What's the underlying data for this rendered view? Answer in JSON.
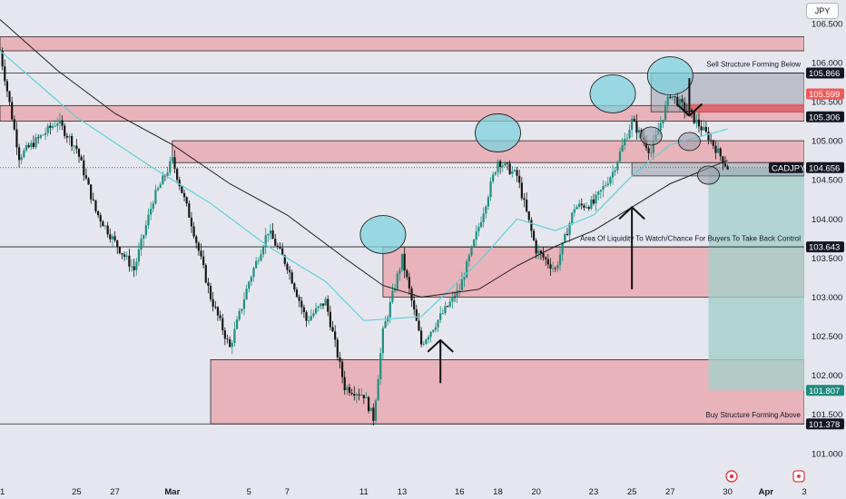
{
  "currency_button": "JPY",
  "symbol": "CADJPY",
  "colors": {
    "bg": "#e6e7ee",
    "zone_fill": "#e7a9b0",
    "zone_stroke": "#2a2a2a",
    "bull": "#1f8f80",
    "bear": "#161616",
    "ma_fast": "#5fd2d6",
    "ma_slow": "#1f1f1f",
    "circle": "#7fd3dd",
    "green_box": "#a5cfc9",
    "price_tag": "#131722",
    "red_tag": "#f05a5a",
    "teal_tag": "#1e8a7e"
  },
  "chart_data": {
    "type": "candlestick",
    "y_axis": {
      "min": 100.65,
      "max": 106.8,
      "ticks": [
        "106.500",
        "106.000",
        "105.500",
        "105.000",
        "104.500",
        "104.000",
        "103.500",
        "103.000",
        "102.500",
        "102.000",
        "101.500",
        "101.000"
      ],
      "side": "right"
    },
    "x_axis": {
      "start": "Feb 21",
      "end": "Apr 3",
      "labels": [
        {
          "label": "1",
          "date": "Feb 21"
        },
        {
          "label": "25",
          "date": "Feb 25"
        },
        {
          "label": "27",
          "date": "Feb 27"
        },
        {
          "label": "Mar",
          "date": "Mar 1"
        },
        {
          "label": "5",
          "date": "Mar 5"
        },
        {
          "label": "7",
          "date": "Mar 7"
        },
        {
          "label": "11",
          "date": "Mar 11"
        },
        {
          "label": "13",
          "date": "Mar 13"
        },
        {
          "label": "16",
          "date": "Mar 16"
        },
        {
          "label": "18",
          "date": "Mar 18"
        },
        {
          "label": "20",
          "date": "Mar 20"
        },
        {
          "label": "23",
          "date": "Mar 23"
        },
        {
          "label": "25",
          "date": "Mar 25"
        },
        {
          "label": "27",
          "date": "Mar 27"
        },
        {
          "label": "30",
          "date": "Mar 30"
        },
        {
          "label": "Apr",
          "date": "Apr 1"
        },
        {
          "label": "3",
          "date": "Apr 3"
        }
      ]
    },
    "price_path": [
      {
        "date": "Feb 21",
        "price": 106.15
      },
      {
        "date": "Feb 22",
        "price": 104.8
      },
      {
        "date": "Feb 24",
        "price": 105.25
      },
      {
        "date": "Feb 25",
        "price": 104.9
      },
      {
        "date": "Feb 26",
        "price": 104.1
      },
      {
        "date": "Feb 27",
        "price": 103.7
      },
      {
        "date": "Feb 28",
        "price": 103.35
      },
      {
        "date": "Feb 29",
        "price": 104.25
      },
      {
        "date": "Mar 1",
        "price": 104.75
      },
      {
        "date": "Mar 2",
        "price": 103.95
      },
      {
        "date": "Mar 3",
        "price": 103.0
      },
      {
        "date": "Mar 4",
        "price": 102.35
      },
      {
        "date": "Mar 5",
        "price": 103.2
      },
      {
        "date": "Mar 6",
        "price": 103.85
      },
      {
        "date": "Mar 7",
        "price": 103.4
      },
      {
        "date": "Mar 8",
        "price": 102.7
      },
      {
        "date": "Mar 9",
        "price": 102.95
      },
      {
        "date": "Mar 10",
        "price": 101.85
      },
      {
        "date": "Mar 11",
        "price": 101.75
      },
      {
        "date": "Mar 11 PM",
        "price": 101.45
      },
      {
        "date": "Mar 12",
        "price": 102.55
      },
      {
        "date": "Mar 13",
        "price": 103.5
      },
      {
        "date": "Mar 14",
        "price": 102.4
      },
      {
        "date": "Mar 15",
        "price": 102.75
      },
      {
        "date": "Mar 16",
        "price": 103.1
      },
      {
        "date": "Mar 17",
        "price": 103.9
      },
      {
        "date": "Mar 18",
        "price": 104.75
      },
      {
        "date": "Mar 19",
        "price": 104.55
      },
      {
        "date": "Mar 20",
        "price": 103.6
      },
      {
        "date": "Mar 21",
        "price": 103.35
      },
      {
        "date": "Mar 22",
        "price": 104.15
      },
      {
        "date": "Mar 23",
        "price": 104.2
      },
      {
        "date": "Mar 24",
        "price": 104.6
      },
      {
        "date": "Mar 25",
        "price": 105.25
      },
      {
        "date": "Mar 26",
        "price": 104.85
      },
      {
        "date": "Mar 27",
        "price": 105.6
      },
      {
        "date": "Mar 28",
        "price": 105.35
      },
      {
        "date": "Mar 29",
        "price": 105.05
      },
      {
        "date": "Mar 30",
        "price": 104.656
      }
    ],
    "ma_fast_path": [
      {
        "date": "Feb 21",
        "price": 106.15
      },
      {
        "date": "Feb 25",
        "price": 105.3
      },
      {
        "date": "Feb 29",
        "price": 104.65
      },
      {
        "date": "Mar 3",
        "price": 104.2
      },
      {
        "date": "Mar 6",
        "price": 103.65
      },
      {
        "date": "Mar 9",
        "price": 103.2
      },
      {
        "date": "Mar 11",
        "price": 102.7
      },
      {
        "date": "Mar 14",
        "price": 102.75
      },
      {
        "date": "Mar 17",
        "price": 103.45
      },
      {
        "date": "Mar 19",
        "price": 104.0
      },
      {
        "date": "Mar 21",
        "price": 103.85
      },
      {
        "date": "Mar 23",
        "price": 104.05
      },
      {
        "date": "Mar 25",
        "price": 104.55
      },
      {
        "date": "Mar 27",
        "price": 104.95
      },
      {
        "date": "Mar 30",
        "price": 105.15
      }
    ],
    "ma_slow_path": [
      {
        "date": "Feb 21",
        "price": 106.55
      },
      {
        "date": "Feb 24",
        "price": 105.9
      },
      {
        "date": "Feb 27",
        "price": 105.35
      },
      {
        "date": "Mar 1",
        "price": 104.95
      },
      {
        "date": "Mar 4",
        "price": 104.45
      },
      {
        "date": "Mar 7",
        "price": 104.05
      },
      {
        "date": "Mar 10",
        "price": 103.5
      },
      {
        "date": "Mar 12",
        "price": 103.15
      },
      {
        "date": "Mar 14",
        "price": 103.0
      },
      {
        "date": "Mar 17",
        "price": 103.1
      },
      {
        "date": "Mar 19",
        "price": 103.4
      },
      {
        "date": "Mar 21",
        "price": 103.65
      },
      {
        "date": "Mar 23",
        "price": 103.85
      },
      {
        "date": "Mar 25",
        "price": 104.15
      },
      {
        "date": "Mar 27",
        "price": 104.45
      },
      {
        "date": "Mar 30",
        "price": 104.75
      }
    ],
    "zones": [
      {
        "from": "Feb 21",
        "to": "Apr 3",
        "low": 106.15,
        "high": 106.33
      },
      {
        "from": "Feb 21",
        "to": "Apr 3",
        "low": 105.25,
        "high": 105.45
      },
      {
        "from": "Mar 1",
        "to": "Apr 3",
        "low": 104.72,
        "high": 105.0
      },
      {
        "from": "Mar 12",
        "to": "Apr 3",
        "low": 103.0,
        "high": 103.64
      },
      {
        "from": "Mar 3",
        "to": "Apr 3",
        "low": 101.378,
        "high": 102.2
      }
    ],
    "grey_boxes": [
      {
        "from": "Mar 26",
        "to": "Apr 3",
        "low": 105.37,
        "high": 105.866
      },
      {
        "from": "Mar 25",
        "to": "Apr 3",
        "low": 104.55,
        "high": 104.72
      }
    ],
    "red_band": {
      "from": "Mar 28",
      "to": "Apr 3",
      "low": 105.36,
      "high": 105.47
    },
    "green_box": {
      "from": "Mar 29",
      "to": "Apr 3",
      "low": 101.807,
      "high": 104.656
    },
    "h_lines": [
      105.866,
      103.643,
      101.378
    ],
    "circles": [
      {
        "date": "Mar 12",
        "price": 103.8,
        "size": "large"
      },
      {
        "date": "Mar 18",
        "price": 105.1,
        "size": "large"
      },
      {
        "date": "Mar 24",
        "price": 105.6,
        "size": "large"
      },
      {
        "date": "Mar 27",
        "price": 105.83,
        "size": "large"
      },
      {
        "date": "Mar 26",
        "price": 105.06,
        "size": "small"
      },
      {
        "date": "Mar 28",
        "price": 104.99,
        "size": "small"
      },
      {
        "date": "Mar 29",
        "price": 104.56,
        "size": "small"
      }
    ],
    "arrows": [
      {
        "date": "Mar 15",
        "from_price": 101.9,
        "to_price": 102.45,
        "dir": "up"
      },
      {
        "date": "Mar 25",
        "from_price": 103.1,
        "to_price": 104.15,
        "dir": "up"
      },
      {
        "date": "Mar 28",
        "from_price": 105.8,
        "to_price": 105.32,
        "dir": "down"
      }
    ],
    "annotations": [
      {
        "text": "Sell Structure Forming Below",
        "price": 105.95
      },
      {
        "text": "Area Of Liquidity To Watch/Chance For Buyers To Take Back Control",
        "price": 103.72
      },
      {
        "text": "Buy Structure Forming Above",
        "price": 101.46
      }
    ],
    "price_tags": [
      {
        "value": "105.866",
        "style": "dark"
      },
      {
        "value": "105.599",
        "style": "red"
      },
      {
        "value": "105.306",
        "style": "dark"
      },
      {
        "value": "104.656",
        "style": "dark",
        "symbol": true
      },
      {
        "value": "103.643",
        "style": "dark"
      },
      {
        "value": "101.807",
        "style": "teal"
      },
      {
        "value": "101.378",
        "style": "dark"
      }
    ]
  }
}
